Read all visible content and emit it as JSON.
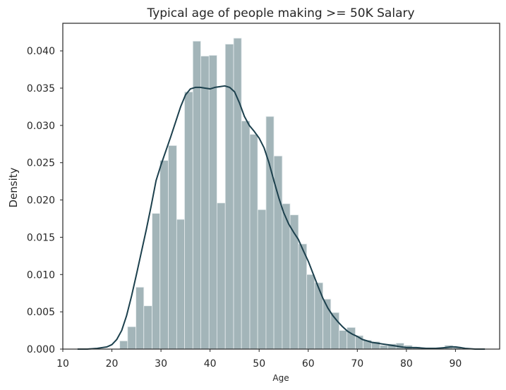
{
  "chart_data": {
    "type": "histogram",
    "title": "Typical age of people making >= 50K Salary",
    "xlabel": "Age",
    "ylabel": "Density",
    "xlim": [
      10,
      99
    ],
    "ylim": [
      0,
      0.0437
    ],
    "xticks": [
      10,
      20,
      30,
      40,
      50,
      60,
      70,
      80,
      90
    ],
    "yticks": [
      0.0,
      0.005,
      0.01,
      0.015,
      0.02,
      0.025,
      0.03,
      0.035,
      0.04
    ],
    "ytick_labels": [
      "0.000",
      "0.005",
      "0.010",
      "0.015",
      "0.020",
      "0.025",
      "0.030",
      "0.035",
      "0.040"
    ],
    "grid": false,
    "bars": {
      "bin_edges": [
        19.9,
        21.6,
        23.2,
        24.9,
        26.5,
        28.2,
        29.8,
        31.5,
        33.2,
        34.8,
        36.5,
        38.1,
        39.8,
        41.4,
        43.1,
        44.8,
        46.4,
        48.1,
        49.7,
        51.4,
        53.0,
        54.7,
        56.3,
        58.0,
        59.7,
        61.3,
        63.0,
        64.6,
        66.3,
        67.9,
        69.6,
        71.2,
        72.9,
        74.6,
        76.2,
        77.9,
        79.5,
        81.2,
        82.8,
        84.5,
        86.1,
        87.8,
        89.5,
        91.1
      ],
      "values": [
        0.0,
        0.0011,
        0.003,
        0.0083,
        0.0058,
        0.0182,
        0.0253,
        0.0273,
        0.0174,
        0.0345,
        0.0413,
        0.0393,
        0.0394,
        0.0196,
        0.0409,
        0.0417,
        0.0306,
        0.0288,
        0.0187,
        0.0312,
        0.0259,
        0.0195,
        0.018,
        0.0141,
        0.01,
        0.0089,
        0.0067,
        0.0049,
        0.0025,
        0.0029,
        0.0018,
        0.0012,
        0.001,
        0.0005,
        0.0007,
        0.0008,
        0.0005,
        0.0003,
        0.0002,
        0.0002,
        0.0002,
        0.0005,
        0.0003
      ],
      "color": "#a3b5b9",
      "edgecolor": "#e6ecee"
    },
    "kde": {
      "x": [
        13,
        15,
        17,
        19,
        20,
        21,
        22,
        23,
        24,
        25,
        26,
        27,
        28,
        29,
        30,
        31,
        32,
        33,
        34,
        35,
        36,
        37,
        38,
        39,
        40,
        41,
        42,
        43,
        44,
        45,
        46,
        47,
        48,
        49,
        50,
        51,
        52,
        53,
        54,
        55,
        56,
        57,
        58,
        59,
        60,
        61,
        62,
        63,
        64,
        65,
        66,
        67,
        68,
        69,
        70,
        71,
        72,
        73,
        74,
        75,
        76,
        77,
        78,
        79,
        80,
        82,
        84,
        86,
        88,
        89,
        90,
        91,
        92,
        94,
        96
      ],
      "y": [
        0.0,
        0.0,
        0.0001,
        0.0003,
        0.0006,
        0.0013,
        0.0025,
        0.0045,
        0.0071,
        0.01,
        0.013,
        0.016,
        0.0192,
        0.0226,
        0.0247,
        0.0266,
        0.0285,
        0.0305,
        0.0325,
        0.0341,
        0.0349,
        0.0351,
        0.0351,
        0.035,
        0.0349,
        0.0351,
        0.0352,
        0.0353,
        0.0351,
        0.0345,
        0.033,
        0.0312,
        0.03,
        0.0292,
        0.0283,
        0.027,
        0.025,
        0.0226,
        0.0203,
        0.0183,
        0.0168,
        0.0157,
        0.0147,
        0.0132,
        0.0118,
        0.0101,
        0.0084,
        0.0068,
        0.0055,
        0.0045,
        0.0037,
        0.003,
        0.0024,
        0.002,
        0.0017,
        0.0013,
        0.0011,
        0.0009,
        0.0008,
        0.0007,
        0.0006,
        0.0005,
        0.0004,
        0.0003,
        0.0002,
        0.0002,
        0.0001,
        0.0001,
        0.0002,
        0.0003,
        0.0003,
        0.0002,
        0.0001,
        0.0,
        0.0
      ],
      "color": "#1c404d"
    }
  }
}
